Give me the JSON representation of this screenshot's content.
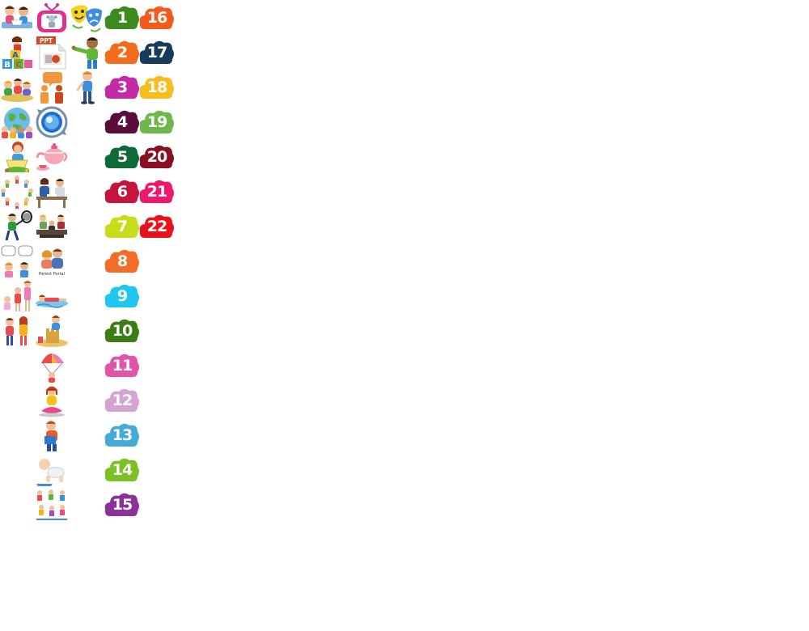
{
  "tiles": [
    {
      "id": "t1",
      "icon": "children-reading-icon"
    },
    {
      "id": "t2",
      "icon": "robot-tv-icon"
    },
    {
      "id": "t3",
      "icon": "theatre-masks-icon"
    },
    {
      "id": "t4",
      "icon": "abc-blocks-icon"
    },
    {
      "id": "t5",
      "icon": "ppt-file-icon",
      "text": "PPT"
    },
    {
      "id": "t6",
      "icon": "child-pointing-icon"
    },
    {
      "id": "t7",
      "icon": "kids-playing-icon"
    },
    {
      "id": "t8",
      "icon": "people-talking-icon"
    },
    {
      "id": "t9",
      "icon": "boy-standing-icon"
    },
    {
      "id": "t10",
      "icon": "globe-children-icon"
    },
    {
      "id": "t11",
      "icon": "refresh-globe-icon"
    },
    {
      "id": "t12",
      "icon": "girl-reading-icon"
    },
    {
      "id": "t13",
      "icon": "teapot-icon"
    },
    {
      "id": "t14",
      "icon": "children-circle-icon"
    },
    {
      "id": "t15",
      "icon": "parent-teacher-meeting-icon"
    },
    {
      "id": "t16",
      "icon": "child-racket-icon"
    },
    {
      "id": "t17",
      "icon": "meeting-table-icon"
    },
    {
      "id": "t18",
      "icon": "speech-bubbles-kids-icon"
    },
    {
      "id": "t19",
      "icon": "parent-portal-icon",
      "text": "Parent Portal"
    },
    {
      "id": "t20",
      "icon": "family-icon"
    },
    {
      "id": "t21",
      "icon": "child-swimming-icon"
    },
    {
      "id": "t22",
      "icon": "kids-group-icon"
    },
    {
      "id": "t23",
      "icon": "sandcastle-icon"
    },
    {
      "id": "t24",
      "icon": "parachute-icon"
    },
    {
      "id": "t25",
      "icon": "girl-meditating-icon"
    },
    {
      "id": "t26",
      "icon": "boy-reading-icon"
    },
    {
      "id": "t27",
      "icon": "baby-crawling-icon"
    },
    {
      "id": "t28",
      "icon": "kids-activities-icon"
    }
  ],
  "numbers": [
    {
      "label": "1",
      "color": "#3d8a1e"
    },
    {
      "label": "2",
      "color": "#f26c1c"
    },
    {
      "label": "3",
      "color": "#c22aa8"
    },
    {
      "label": "4",
      "color": "#5b0c3d"
    },
    {
      "label": "5",
      "color": "#0f6a3a"
    },
    {
      "label": "6",
      "color": "#c5143e"
    },
    {
      "label": "7",
      "color": "#c9dc1b"
    },
    {
      "label": "8",
      "color": "#f26d25"
    },
    {
      "label": "9",
      "color": "#1fc7ee"
    },
    {
      "label": "10",
      "color": "#3a7d14"
    },
    {
      "label": "11",
      "color": "#e055aa"
    },
    {
      "label": "12",
      "color": "#d4a3d2"
    },
    {
      "label": "13",
      "color": "#45abd6"
    },
    {
      "label": "14",
      "color": "#7cc123"
    },
    {
      "label": "15",
      "color": "#8a3298"
    },
    {
      "label": "16",
      "color": "#f45a1e"
    },
    {
      "label": "17",
      "color": "#153c5a"
    },
    {
      "label": "18",
      "color": "#f7bd1e"
    },
    {
      "label": "19",
      "color": "#6db84a"
    },
    {
      "label": "20",
      "color": "#8a0f22"
    },
    {
      "label": "21",
      "color": "#f0186a"
    },
    {
      "label": "22",
      "color": "#e8111c"
    }
  ]
}
